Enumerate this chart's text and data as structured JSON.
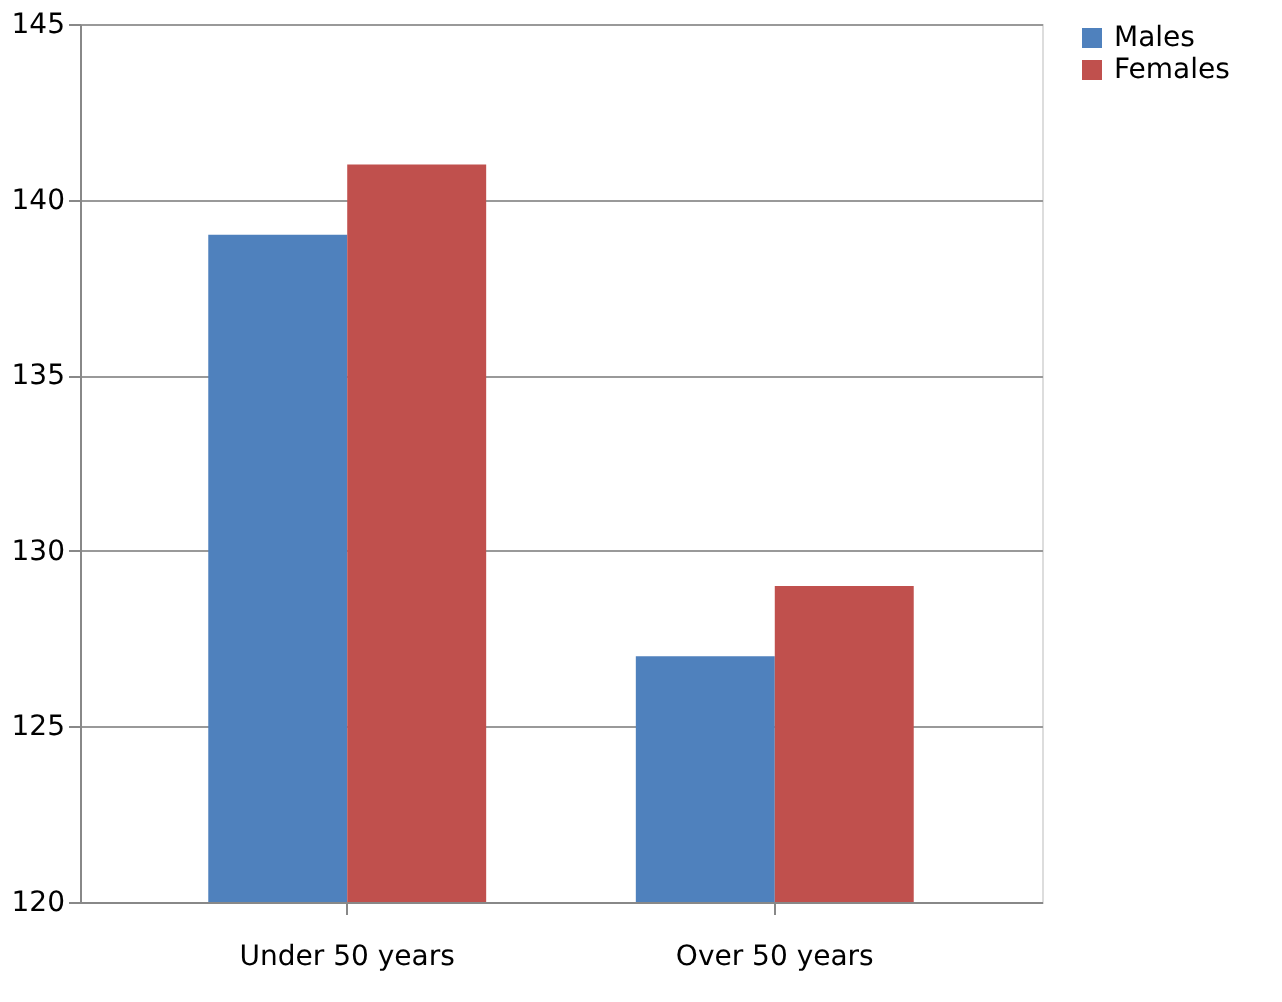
{
  "chart_data": {
    "type": "bar",
    "categories": [
      "Under 50 years",
      "Over 50 years"
    ],
    "series": [
      {
        "name": "Males",
        "color": "#4f81bd",
        "values": [
          139,
          127
        ]
      },
      {
        "name": "Females",
        "color": "#c0504d",
        "values": [
          141,
          129
        ]
      }
    ],
    "ylim": [
      120,
      145
    ],
    "yticks": [
      120,
      125,
      130,
      135,
      140,
      145
    ],
    "grid": "y",
    "legend": "right"
  }
}
